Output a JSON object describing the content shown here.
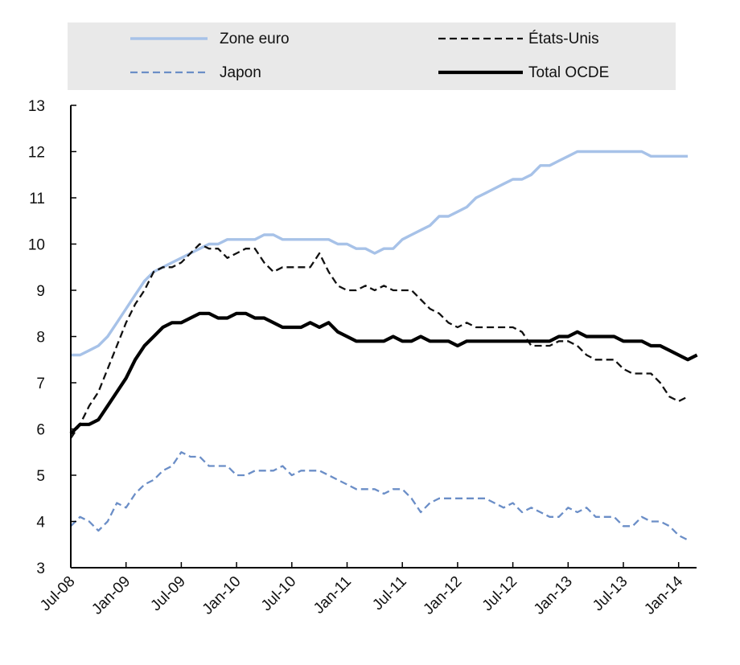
{
  "chart_data": {
    "type": "line",
    "title": "",
    "xlabel": "",
    "ylabel": "",
    "ylim": [
      3,
      13
    ],
    "yticks": [
      3,
      4,
      5,
      6,
      7,
      8,
      9,
      10,
      11,
      12,
      13
    ],
    "xticks": [
      "Jul-08",
      "Jan-09",
      "Jul-09",
      "Jan-10",
      "Jul-10",
      "Jan-11",
      "Jul-11",
      "Jan-12",
      "Jul-12",
      "Jan-13",
      "Jul-13",
      "Jan-14"
    ],
    "x_start": "Jul-08",
    "grid": false,
    "legend_position": "top",
    "series": [
      {
        "name": "Zone euro",
        "color": "#a7c2e8",
        "style": "solid",
        "values": [
          7.6,
          7.6,
          7.7,
          7.8,
          8.0,
          8.3,
          8.6,
          8.9,
          9.2,
          9.4,
          9.5,
          9.6,
          9.7,
          9.8,
          9.9,
          10.0,
          10.0,
          10.1,
          10.1,
          10.1,
          10.1,
          10.2,
          10.2,
          10.1,
          10.1,
          10.1,
          10.1,
          10.1,
          10.1,
          10.0,
          10.0,
          9.9,
          9.9,
          9.8,
          9.9,
          9.9,
          10.1,
          10.2,
          10.3,
          10.4,
          10.6,
          10.6,
          10.7,
          10.8,
          11.0,
          11.1,
          11.2,
          11.3,
          11.4,
          11.4,
          11.5,
          11.7,
          11.7,
          11.8,
          11.9,
          12.0,
          12.0,
          12.0,
          12.0,
          12.0,
          12.0,
          12.0,
          12.0,
          11.9,
          11.9,
          11.9,
          11.9,
          11.9
        ]
      },
      {
        "name": "États-Unis",
        "color": "#111111",
        "style": "dashed",
        "values": [
          5.8,
          6.1,
          6.5,
          6.8,
          7.3,
          7.8,
          8.3,
          8.7,
          9.0,
          9.4,
          9.5,
          9.5,
          9.6,
          9.8,
          10.0,
          9.9,
          9.9,
          9.7,
          9.8,
          9.9,
          9.9,
          9.6,
          9.4,
          9.5,
          9.5,
          9.5,
          9.5,
          9.8,
          9.4,
          9.1,
          9.0,
          9.0,
          9.1,
          9.0,
          9.1,
          9.0,
          9.0,
          9.0,
          8.8,
          8.6,
          8.5,
          8.3,
          8.2,
          8.3,
          8.2,
          8.2,
          8.2,
          8.2,
          8.2,
          8.1,
          7.8,
          7.8,
          7.8,
          7.9,
          7.9,
          7.8,
          7.6,
          7.5,
          7.5,
          7.5,
          7.3,
          7.2,
          7.2,
          7.2,
          7.0,
          6.7,
          6.6,
          6.7
        ]
      },
      {
        "name": "Japon",
        "color": "#6b8ec7",
        "style": "dashed",
        "values": [
          3.9,
          4.1,
          4.0,
          3.8,
          4.0,
          4.4,
          4.3,
          4.6,
          4.8,
          4.9,
          5.1,
          5.2,
          5.5,
          5.4,
          5.4,
          5.2,
          5.2,
          5.2,
          5.0,
          5.0,
          5.1,
          5.1,
          5.1,
          5.2,
          5.0,
          5.1,
          5.1,
          5.1,
          5.0,
          4.9,
          4.8,
          4.7,
          4.7,
          4.7,
          4.6,
          4.7,
          4.7,
          4.5,
          4.2,
          4.4,
          4.5,
          4.5,
          4.5,
          4.5,
          4.5,
          4.5,
          4.4,
          4.3,
          4.4,
          4.2,
          4.3,
          4.2,
          4.1,
          4.1,
          4.3,
          4.2,
          4.3,
          4.1,
          4.1,
          4.1,
          3.9,
          3.9,
          4.1,
          4.0,
          4.0,
          3.9,
          3.7,
          3.6
        ]
      },
      {
        "name": "Total OCDE",
        "color": "#000000",
        "style": "solid",
        "values": [
          5.9,
          6.1,
          6.1,
          6.2,
          6.5,
          6.8,
          7.1,
          7.5,
          7.8,
          8.0,
          8.2,
          8.3,
          8.3,
          8.4,
          8.5,
          8.5,
          8.4,
          8.4,
          8.5,
          8.5,
          8.4,
          8.4,
          8.3,
          8.2,
          8.2,
          8.2,
          8.3,
          8.2,
          8.3,
          8.1,
          8.0,
          7.9,
          7.9,
          7.9,
          7.9,
          8.0,
          7.9,
          7.9,
          8.0,
          7.9,
          7.9,
          7.9,
          7.8,
          7.9,
          7.9,
          7.9,
          7.9,
          7.9,
          7.9,
          7.9,
          7.9,
          7.9,
          7.9,
          8.0,
          8.0,
          8.1,
          8.0,
          8.0,
          8.0,
          8.0,
          7.9,
          7.9,
          7.9,
          7.8,
          7.8,
          7.7,
          7.6,
          7.5,
          7.6
        ]
      }
    ]
  }
}
